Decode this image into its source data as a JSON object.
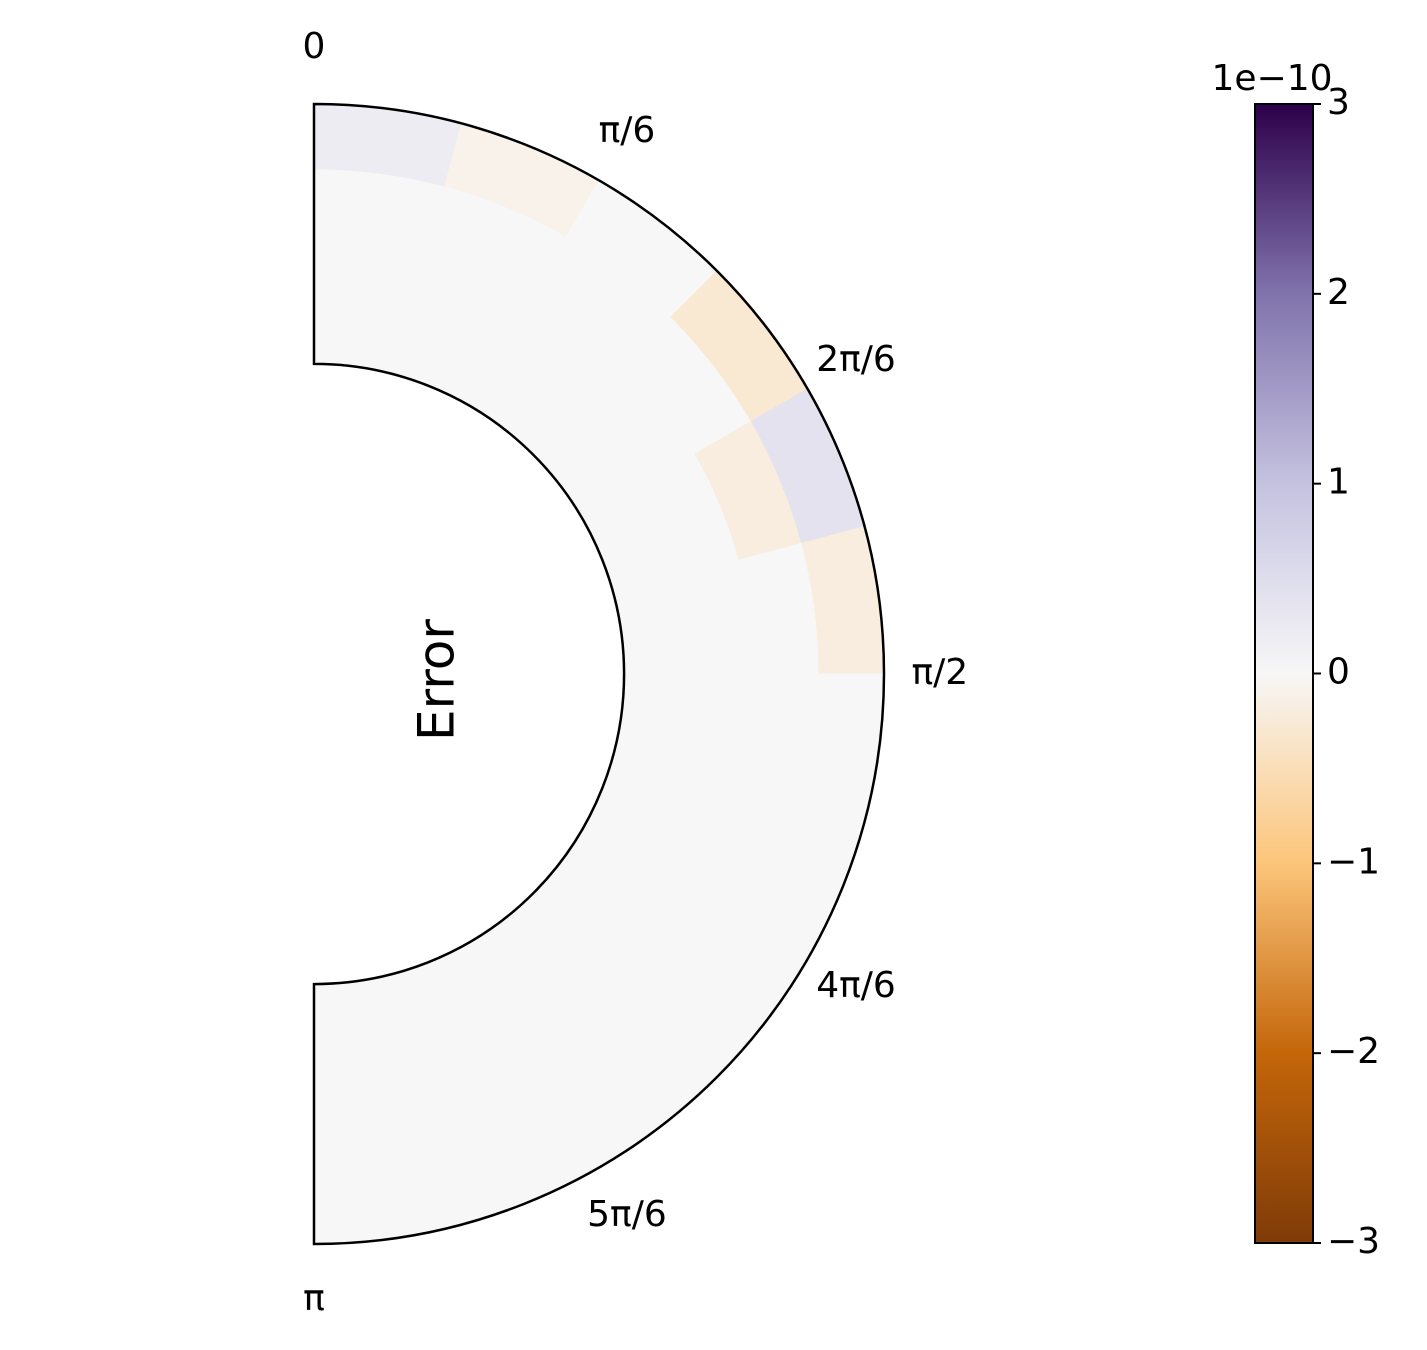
{
  "chart_data": {
    "type": "polar-heatmap",
    "ylabel": "Error",
    "theta_zero": "N",
    "theta_direction": "clockwise",
    "thetalim": [
      0,
      3.1416
    ],
    "rlim": [
      0,
      1
    ],
    "theta_edges": [
      0,
      0.2618,
      0.5236,
      0.7854,
      1.0472,
      1.309,
      1.5708,
      1.8326,
      2.0944,
      2.3562,
      2.618,
      2.8798,
      3.1416
    ],
    "r_edges": [
      0.544,
      0.658,
      0.772,
      0.886,
      1.0
    ],
    "values": [
      [
        0,
        0,
        0,
        0.2
      ],
      [
        0,
        0,
        0,
        -0.1
      ],
      [
        0,
        0,
        0,
        0
      ],
      [
        0,
        0,
        0,
        -0.3
      ],
      [
        0,
        0,
        -0.2,
        0.4
      ],
      [
        0,
        0,
        0,
        -0.2
      ],
      [
        0,
        0,
        0,
        0
      ],
      [
        0,
        0,
        0,
        0
      ],
      [
        0,
        0,
        0,
        0
      ],
      [
        0,
        0,
        0,
        0
      ],
      [
        0,
        0,
        0,
        0
      ],
      [
        0,
        0,
        0,
        0
      ]
    ],
    "xticks": [
      0,
      {
        "value": 0.5236,
        "label": "π/6"
      },
      {
        "value": 1.0472,
        "label": "2π/6"
      },
      {
        "value": 1.5708,
        "label": "π/2"
      },
      {
        "value": 2.0944,
        "label": "4π/6"
      },
      {
        "value": 2.618,
        "label": "5π/6"
      },
      {
        "value": 3.1416,
        "label": "π"
      }
    ],
    "colorbar": {
      "offset_label": "1e−10",
      "lim": [
        -3,
        3
      ],
      "ticks": [
        {
          "value": -3,
          "label": "−3"
        },
        {
          "value": -2,
          "label": "−2"
        },
        {
          "value": -1,
          "label": "−1"
        },
        0,
        1,
        2,
        3
      ],
      "colors": [
        "#7f3b08",
        "#c4660a",
        "#fcc57a",
        "#f7f7f7",
        "#c5c2e0",
        "#8073ac",
        "#2d004b"
      ]
    }
  }
}
